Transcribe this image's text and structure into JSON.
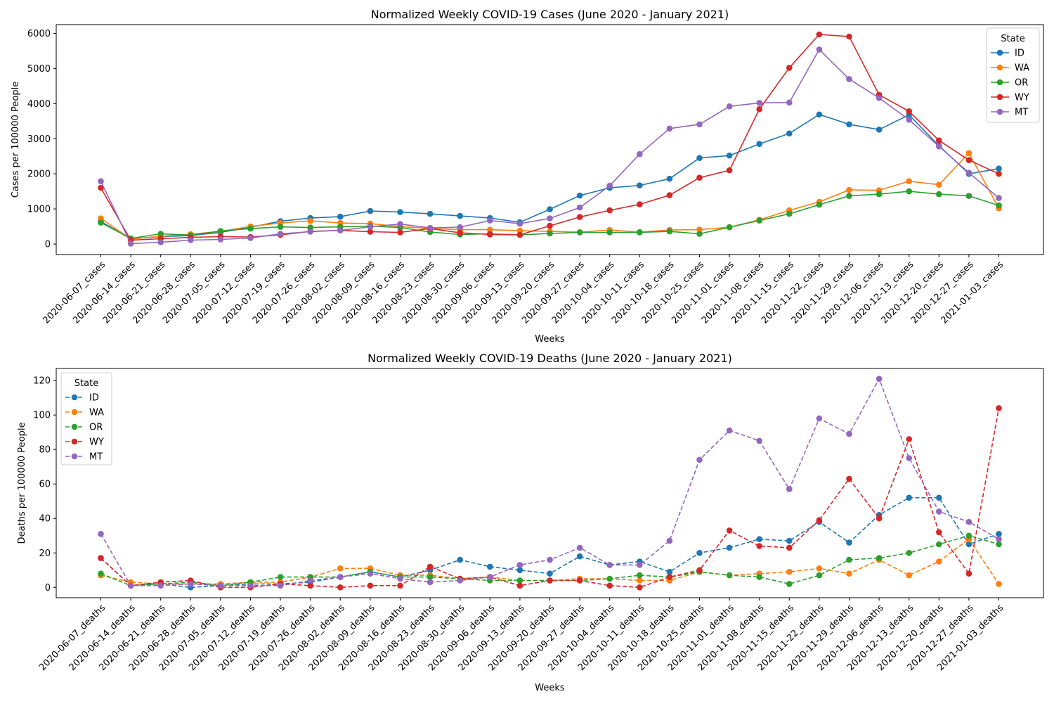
{
  "chart_data": [
    {
      "type": "line",
      "title": "Normalized Weekly COVID-19 Cases (June 2020 - January 2021)",
      "xlabel": "Weeks",
      "ylabel": "Cases per 100000 People",
      "ylim": [
        -300,
        6250
      ],
      "yticks": [
        0,
        1000,
        2000,
        3000,
        4000,
        5000,
        6000
      ],
      "line_style": "solid",
      "legend": {
        "title": "State",
        "placement": "top-right"
      },
      "categories": [
        "2020-06-07_cases",
        "2020-06-14_cases",
        "2020-06-21_cases",
        "2020-06-28_cases",
        "2020-07-05_cases",
        "2020-07-12_cases",
        "2020-07-19_cases",
        "2020-07-26_cases",
        "2020-08-02_cases",
        "2020-08-09_cases",
        "2020-08-16_cases",
        "2020-08-23_cases",
        "2020-08-30_cases",
        "2020-09-06_cases",
        "2020-09-13_cases",
        "2020-09-20_cases",
        "2020-09-27_cases",
        "2020-10-04_cases",
        "2020-10-11_cases",
        "2020-10-18_cases",
        "2020-10-25_cases",
        "2020-11-01_cases",
        "2020-11-08_cases",
        "2020-11-15_cases",
        "2020-11-22_cases",
        "2020-11-29_cases",
        "2020-12-06_cases",
        "2020-12-13_cases",
        "2020-12-20_cases",
        "2020-12-27_cases",
        "2021-01-03_cases"
      ],
      "series": [
        {
          "name": "ID",
          "color": "#1f77b4",
          "values": [
            640,
            150,
            210,
            240,
            330,
            480,
            650,
            740,
            780,
            940,
            910,
            860,
            800,
            740,
            620,
            990,
            1380,
            1600,
            1670,
            1860,
            2450,
            2520,
            2850,
            3150,
            3690,
            3410,
            3260,
            3680,
            2800,
            2000,
            2150
          ]
        },
        {
          "name": "WA",
          "color": "#ff7f0e",
          "values": [
            730,
            140,
            220,
            280,
            360,
            500,
            600,
            660,
            600,
            580,
            500,
            440,
            410,
            410,
            380,
            360,
            340,
            400,
            340,
            400,
            410,
            480,
            690,
            960,
            1200,
            1540,
            1530,
            1790,
            1690,
            2590,
            1020
          ]
        },
        {
          "name": "OR",
          "color": "#2ca02c",
          "values": [
            610,
            160,
            290,
            250,
            370,
            440,
            490,
            470,
            490,
            510,
            470,
            340,
            270,
            290,
            260,
            300,
            330,
            330,
            330,
            360,
            290,
            480,
            670,
            860,
            1120,
            1370,
            1420,
            1500,
            1420,
            1370,
            1100
          ]
        },
        {
          "name": "WY",
          "color": "#d62728",
          "values": [
            1600,
            110,
            150,
            190,
            210,
            200,
            260,
            360,
            390,
            350,
            330,
            440,
            320,
            270,
            260,
            520,
            770,
            960,
            1130,
            1390,
            1890,
            2100,
            3840,
            5020,
            5970,
            5910,
            4250,
            3780,
            2950,
            2390,
            2000
          ]
        },
        {
          "name": "MT",
          "color": "#9467bd",
          "values": [
            1790,
            10,
            50,
            110,
            130,
            170,
            290,
            350,
            390,
            490,
            570,
            460,
            480,
            670,
            580,
            730,
            1040,
            1660,
            2560,
            3290,
            3410,
            3920,
            4020,
            4030,
            5540,
            4700,
            4160,
            3540,
            2780,
            2030,
            1310
          ]
        }
      ]
    },
    {
      "type": "line",
      "title": "Normalized Weekly COVID-19 Deaths (June 2020 - January 2021)",
      "xlabel": "Weeks",
      "ylabel": "Deaths per 100000 People",
      "ylim": [
        -6,
        127
      ],
      "yticks": [
        0,
        20,
        40,
        60,
        80,
        100,
        120
      ],
      "line_style": "dashed",
      "legend": {
        "title": "State",
        "placement": "top-left"
      },
      "categories": [
        "2020-06-07_deaths",
        "2020-06-14_deaths",
        "2020-06-21_deaths",
        "2020-06-28_deaths",
        "2020-07-05_deaths",
        "2020-07-12_deaths",
        "2020-07-19_deaths",
        "2020-07-26_deaths",
        "2020-08-02_deaths",
        "2020-08-09_deaths",
        "2020-08-16_deaths",
        "2020-08-23_deaths",
        "2020-08-30_deaths",
        "2020-09-06_deaths",
        "2020-09-13_deaths",
        "2020-09-20_deaths",
        "2020-09-27_deaths",
        "2020-10-04_deaths",
        "2020-10-11_deaths",
        "2020-10-18_deaths",
        "2020-10-25_deaths",
        "2020-11-01_deaths",
        "2020-11-08_deaths",
        "2020-11-15_deaths",
        "2020-11-22_deaths",
        "2020-11-29_deaths",
        "2020-12-06_deaths",
        "2020-12-13_deaths",
        "2020-12-20_deaths",
        "2020-12-27_deaths",
        "2021-01-03_deaths"
      ],
      "series": [
        {
          "name": "ID",
          "color": "#1f77b4",
          "values": [
            17,
            1,
            2,
            0,
            1,
            2,
            2,
            3,
            6,
            9,
            6,
            10,
            16,
            12,
            10,
            8,
            18,
            13,
            15,
            9,
            20,
            23,
            28,
            27,
            38,
            26,
            42,
            52,
            52,
            25,
            31
          ]
        },
        {
          "name": "WA",
          "color": "#ff7f0e",
          "values": [
            7,
            3,
            2,
            2,
            2,
            3,
            3,
            6,
            11,
            11,
            7,
            7,
            5,
            6,
            4,
            4,
            5,
            5,
            4,
            4,
            9,
            7,
            8,
            9,
            11,
            8,
            16,
            7,
            15,
            28,
            2
          ]
        },
        {
          "name": "OR",
          "color": "#2ca02c",
          "values": [
            8,
            1,
            2,
            3,
            1,
            3,
            6,
            6,
            6,
            9,
            6,
            6,
            5,
            4,
            4,
            4,
            4,
            5,
            7,
            6,
            9,
            7,
            6,
            2,
            7,
            16,
            17,
            20,
            25,
            30,
            25
          ]
        },
        {
          "name": "WY",
          "color": "#d62728",
          "values": [
            17,
            1,
            3,
            4,
            0,
            0,
            2,
            1,
            0,
            1,
            1,
            12,
            5,
            6,
            1,
            4,
            4,
            1,
            0,
            6,
            10,
            33,
            24,
            23,
            39,
            63,
            40,
            86,
            32,
            8,
            104
          ]
        },
        {
          "name": "MT",
          "color": "#9467bd",
          "values": [
            31,
            1,
            1,
            2,
            1,
            1,
            1,
            4,
            6,
            8,
            5,
            3,
            4,
            6,
            13,
            16,
            23,
            13,
            13,
            27,
            74,
            91,
            85,
            57,
            98,
            89,
            121,
            75,
            44,
            38,
            28
          ]
        }
      ]
    }
  ]
}
